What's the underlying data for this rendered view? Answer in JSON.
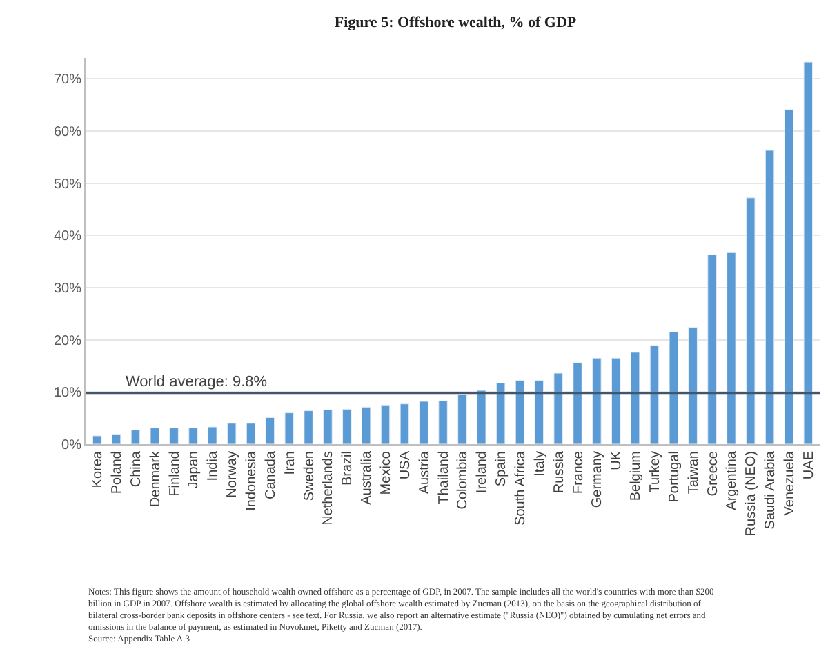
{
  "chart_data": {
    "type": "bar",
    "title": "Figure 5: Offshore wealth, % of GDP",
    "categories": [
      "Korea",
      "Poland",
      "China",
      "Denmark",
      "Finland",
      "Japan",
      "India",
      "Norway",
      "Indonesia",
      "Canada",
      "Iran",
      "Sweden",
      "Netherlands",
      "Brazil",
      "Australia",
      "Mexico",
      "USA",
      "Austria",
      "Thailand",
      "Colombia",
      "Ireland",
      "Spain",
      "South Africa",
      "Italy",
      "Russia",
      "France",
      "Germany",
      "UK",
      "Belgium",
      "Turkey",
      "Portugal",
      "Taiwan",
      "Greece",
      "Argentina",
      "Russia (NEO)",
      "Saudi Arabia",
      "Venezuela",
      "UAE"
    ],
    "values": [
      1.6,
      1.9,
      2.7,
      3.1,
      3.1,
      3.1,
      3.3,
      4.0,
      4.0,
      5.1,
      6.0,
      6.4,
      6.6,
      6.7,
      7.1,
      7.5,
      7.7,
      8.2,
      8.3,
      9.5,
      10.3,
      11.7,
      12.2,
      12.2,
      13.6,
      15.6,
      16.5,
      16.5,
      17.6,
      18.9,
      21.5,
      22.4,
      36.3,
      36.7,
      47.2,
      56.3,
      64.1,
      73.2
    ],
    "color": "#5b9bd5",
    "ylim": [
      0,
      74
    ],
    "yticks": [
      {
        "value": 0,
        "label": "0%"
      },
      {
        "value": 10,
        "label": "10%"
      },
      {
        "value": 20,
        "label": "20%"
      },
      {
        "value": 30,
        "label": "30%"
      },
      {
        "value": 40,
        "label": "40%"
      },
      {
        "value": 50,
        "label": "50%"
      },
      {
        "value": 60,
        "label": "60%"
      },
      {
        "value": 70,
        "label": "70%"
      }
    ],
    "grid": "y",
    "ref_lines": [
      {
        "axis": "y",
        "value": 9.8,
        "label": "World average: 9.8%",
        "color": "#44546a"
      }
    ],
    "annotations": [
      "Notes: This figure shows the amount of household wealth owned offshore as a percentage of GDP, in 2007. The sample includes all the world's countries with more than $200 billion in GDP in 2007. Offshore wealth is estimated by allocating the global offshore wealth estimated by Zucman (2013), on the basis on the geographical distribution of bilateral cross-border bank deposits in offshore centers - see text. For Russia, we also report an alternative estimate (\"Russia (NEO)\") obtained by cumulating net errors and omissions in the balance of payment, as estimated in Novokmet, Piketty and Zucman (2017).",
      "Source: Appendix Table A.3"
    ]
  }
}
